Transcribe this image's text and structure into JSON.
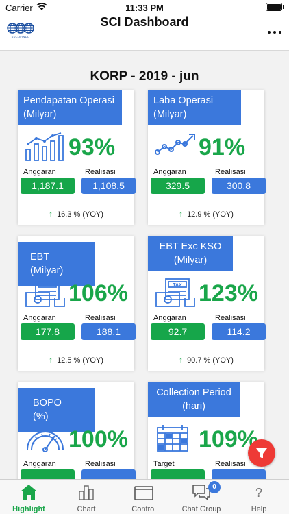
{
  "status_bar": {
    "carrier": "Carrier",
    "time": "11:33 PM"
  },
  "header": {
    "title": "SCI Dashboard",
    "logo_text": "SUCOFINDO"
  },
  "period": "KORP - 2019 - jun",
  "colors": {
    "accent_blue": "#3b78dc",
    "positive_green": "#16a64a",
    "fab_red": "#ee3a36"
  },
  "cards": [
    {
      "title": "Pendapatan Operasi (Milyar)",
      "icon": "bar-chart-icon",
      "percent": "93%",
      "left_label": "Anggaran",
      "left_value": "1,187.1",
      "right_label": "Realisasi",
      "right_value": "1,108.5",
      "yoy": "16.3 % (YOY)"
    },
    {
      "title": "Laba Operasi (Milyar)",
      "icon": "line-chart-icon",
      "percent": "91%",
      "left_label": "Anggaran",
      "left_value": "329.5",
      "right_label": "Realisasi",
      "right_value": "300.8",
      "yoy": "12.9 % (YOY)"
    },
    {
      "title": "EBT (Milyar)",
      "icon": "tax-icon",
      "percent": "106%",
      "left_label": "Anggaran",
      "left_value": "177.8",
      "right_label": "Realisasi",
      "right_value": "188.1",
      "yoy": "12.5 % (YOY)"
    },
    {
      "title": "EBT Exc KSO (Milyar)",
      "icon": "tax-icon",
      "percent": "123%",
      "left_label": "Anggaran",
      "left_value": "92.7",
      "right_label": "Realisasi",
      "right_value": "114.2",
      "yoy": "90.7 % (YOY)"
    },
    {
      "title": "BOPO (%)",
      "icon": "gauge-icon",
      "percent": "100%",
      "left_label": "Anggaran",
      "left_value": "",
      "right_label": "Realisasi",
      "right_value": "",
      "yoy": ""
    },
    {
      "title": "Collection Period (hari)",
      "icon": "calendar-icon",
      "percent": "109%",
      "left_label": "Target",
      "left_value": "",
      "right_label": "Realisasi",
      "right_value": "",
      "yoy": ""
    }
  ],
  "tabs": [
    {
      "label": "Highlight",
      "icon": "home-icon",
      "active": true
    },
    {
      "label": "Chart",
      "icon": "chart-icon",
      "active": false
    },
    {
      "label": "Control",
      "icon": "folder-icon",
      "active": false
    },
    {
      "label": "Chat Group",
      "icon": "chat-icon",
      "active": false,
      "badge": "0"
    },
    {
      "label": "Help",
      "icon": "help-icon",
      "active": false
    }
  ]
}
